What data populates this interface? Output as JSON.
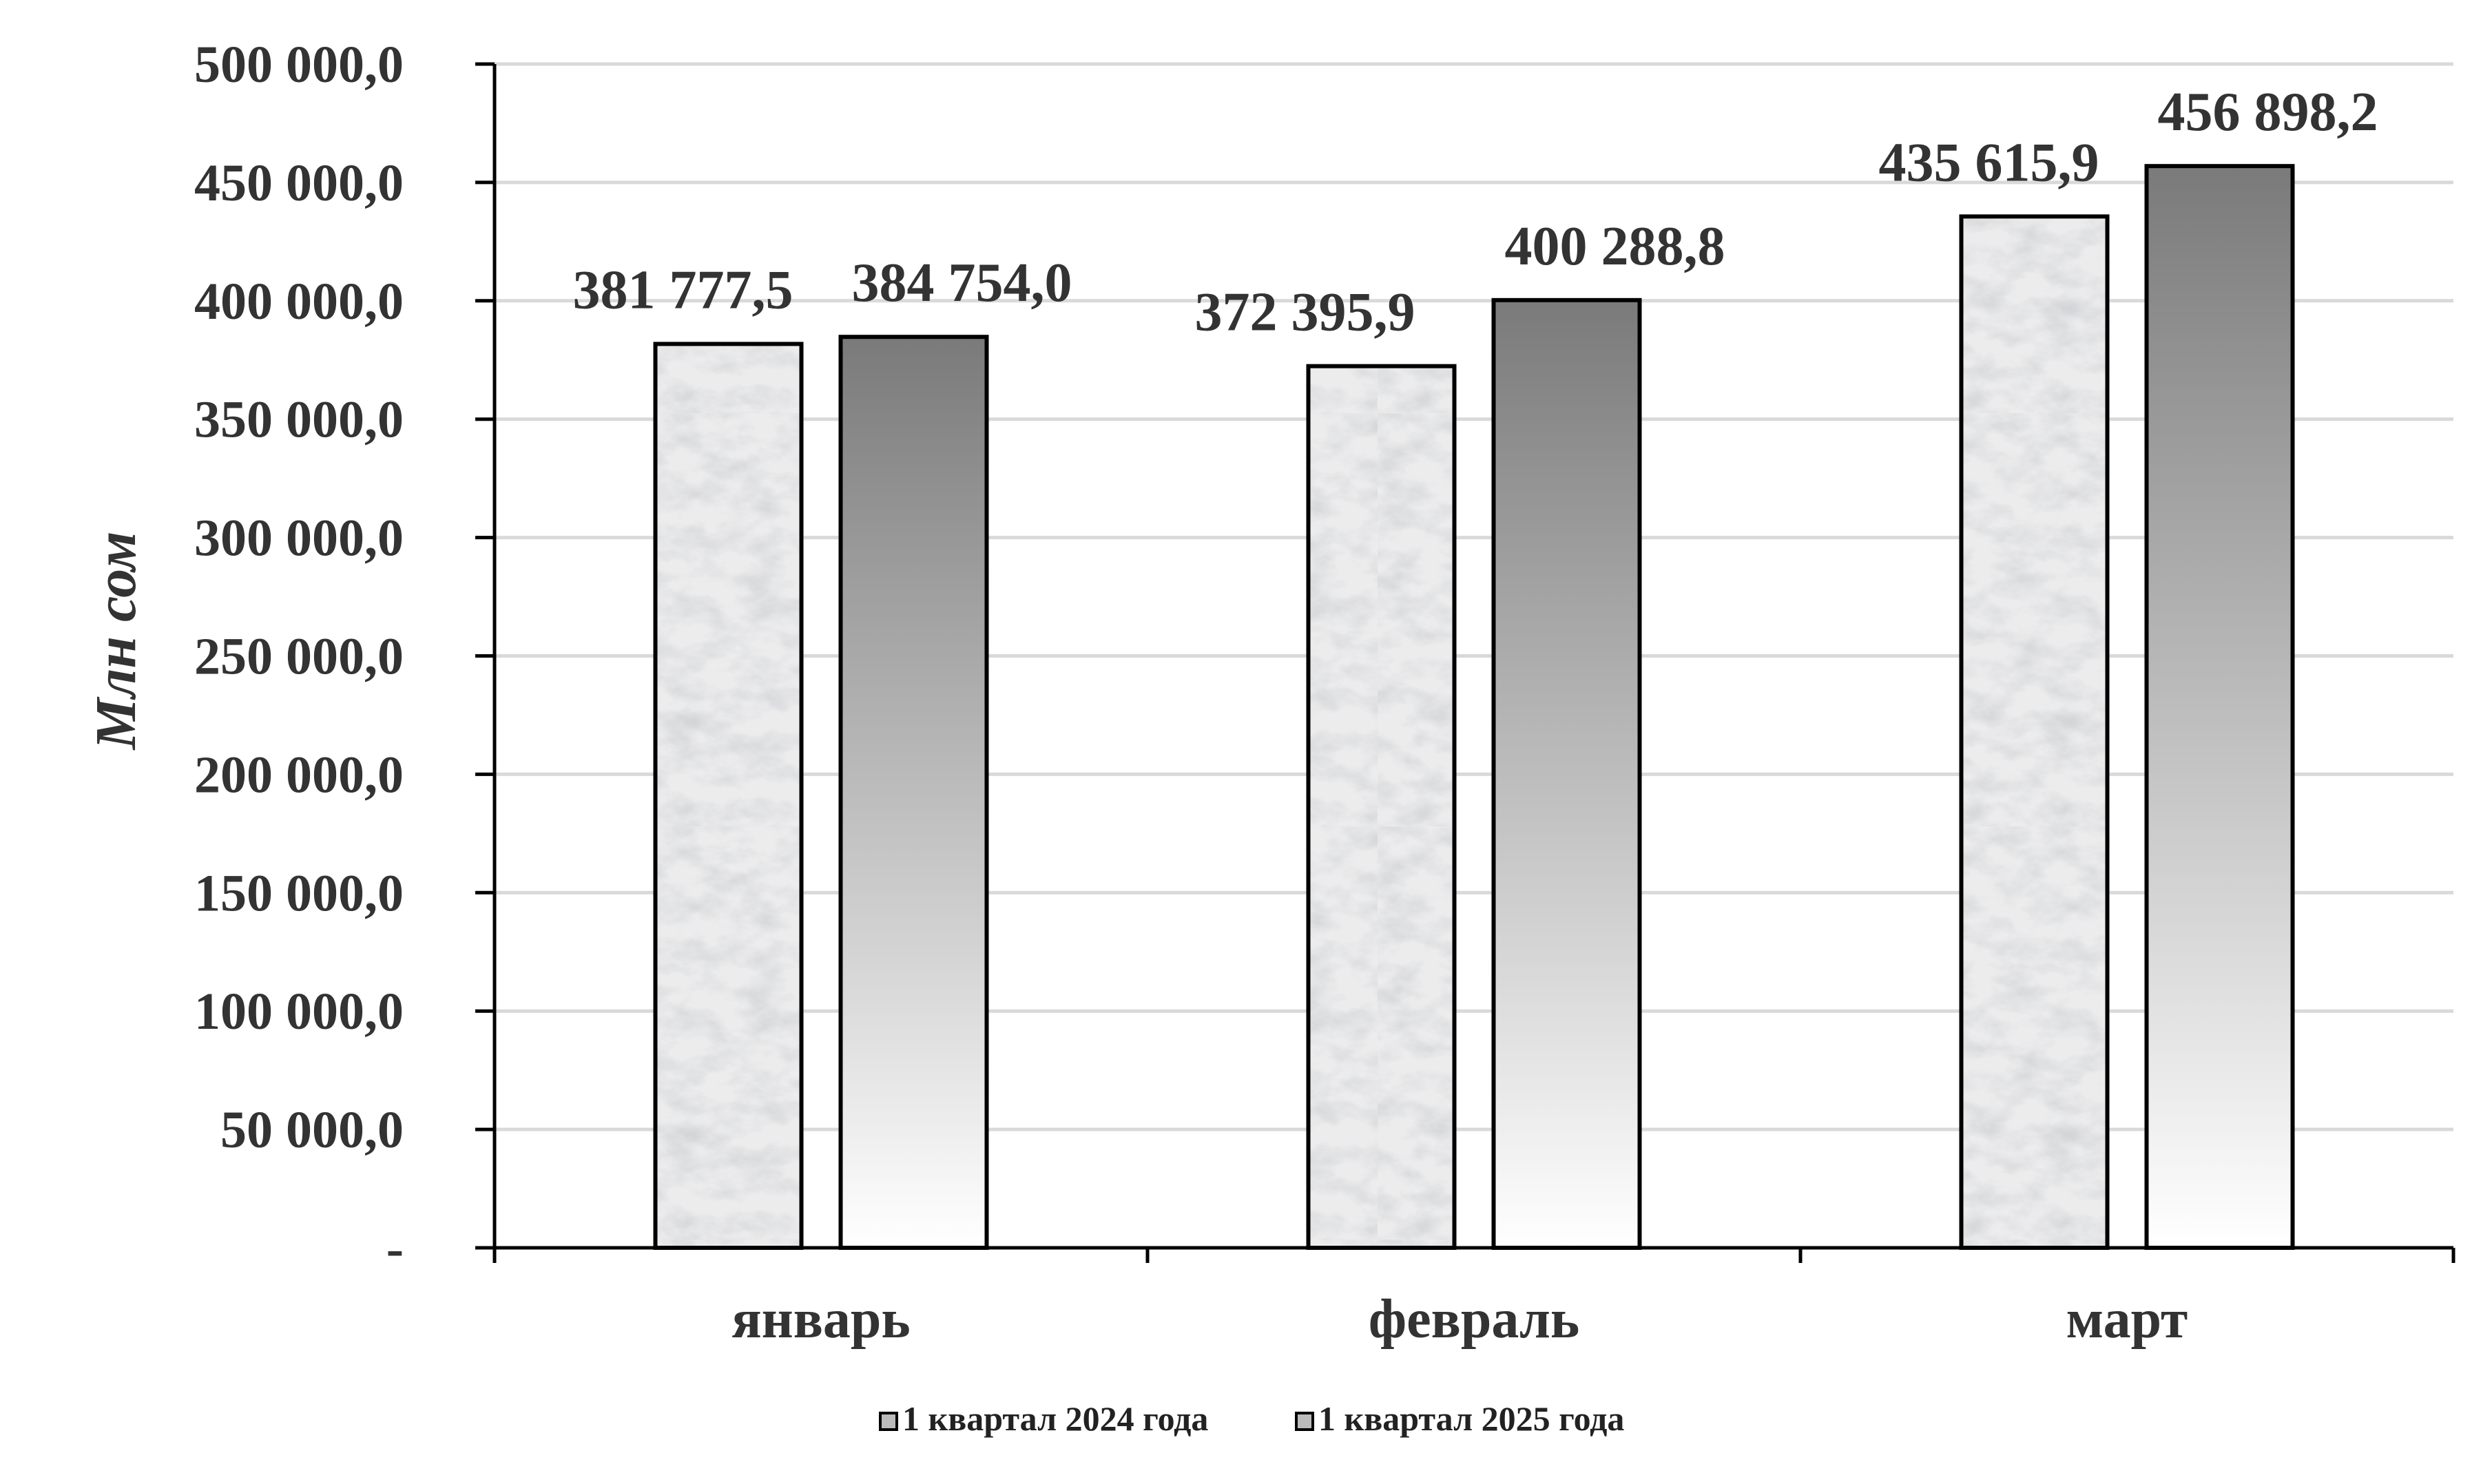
{
  "chart_data": {
    "type": "bar",
    "categories": [
      "январь",
      "февраль",
      "март"
    ],
    "series": [
      {
        "name": "1 квартал 2024 года",
        "values": [
          381777.5,
          372395.9,
          435615.9
        ],
        "value_labels": [
          "381 777,5",
          "372 395,9",
          "435 615,9"
        ],
        "fill": "marble-light-gray"
      },
      {
        "name": "1 квартал 2025 года",
        "values": [
          384754.0,
          400288.8,
          456898.2
        ],
        "value_labels": [
          "384 754,0",
          "400 288,8",
          "456 898,2"
        ],
        "fill": "gradient-gray"
      }
    ],
    "title": "",
    "xlabel": "",
    "ylabel": "Млн сом",
    "ylim": [
      0,
      500000
    ],
    "yticks": [
      {
        "value": 0,
        "label": "-"
      },
      {
        "value": 50000,
        "label": "50 000,0"
      },
      {
        "value": 100000,
        "label": "100 000,0"
      },
      {
        "value": 150000,
        "label": "150 000,0"
      },
      {
        "value": 200000,
        "label": "200 000,0"
      },
      {
        "value": 250000,
        "label": "250 000,0"
      },
      {
        "value": 300000,
        "label": "300 000,0"
      },
      {
        "value": 350000,
        "label": "350 000,0"
      },
      {
        "value": 400000,
        "label": "400 000,0"
      },
      {
        "value": 450000,
        "label": "450 000,0"
      },
      {
        "value": 500000,
        "label": "500 000,0"
      }
    ],
    "grid": true,
    "legend_position": "bottom",
    "colors": {
      "grid": "#d9d9d9",
      "axis": "#000000",
      "text": "#333333",
      "gradient_top": "#7a7a7a",
      "gradient_bottom": "#ffffff",
      "marble_base": "#e9e9ea"
    }
  }
}
